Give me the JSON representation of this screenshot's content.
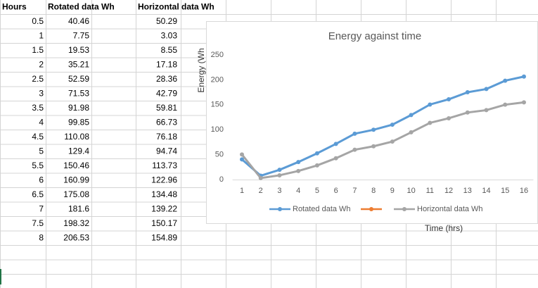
{
  "table": {
    "headers": [
      "Hours",
      "Rotated data Wh",
      "Horizontal data Wh"
    ],
    "rows": [
      [
        0.5,
        40.46,
        50.29
      ],
      [
        1,
        7.75,
        3.03
      ],
      [
        1.5,
        19.53,
        8.55
      ],
      [
        2,
        35.21,
        17.18
      ],
      [
        2.5,
        52.59,
        28.36
      ],
      [
        3,
        71.53,
        42.79
      ],
      [
        3.5,
        91.98,
        59.81
      ],
      [
        4,
        99.85,
        66.73
      ],
      [
        4.5,
        110.08,
        76.18
      ],
      [
        5,
        129.4,
        94.74
      ],
      [
        5.5,
        150.46,
        113.73
      ],
      [
        6,
        160.99,
        122.96
      ],
      [
        6.5,
        175.08,
        134.48
      ],
      [
        7,
        181.6,
        139.22
      ],
      [
        7.5,
        198.32,
        150.17
      ],
      [
        8,
        206.53,
        154.89
      ]
    ]
  },
  "chart_data": {
    "type": "line",
    "title": "Energy against time",
    "y_label": "Energy (Wh",
    "x_label": "Time (hrs)",
    "categories": [
      1,
      2,
      3,
      4,
      5,
      6,
      7,
      8,
      9,
      10,
      11,
      12,
      13,
      14,
      15,
      16
    ],
    "series": [
      {
        "name": "Rotated data Wh",
        "color": "#5b9bd5",
        "values": [
          40.46,
          7.75,
          19.53,
          35.21,
          52.59,
          71.53,
          91.98,
          99.85,
          110.08,
          129.4,
          150.46,
          160.99,
          175.08,
          181.6,
          198.32,
          206.53
        ]
      },
      {
        "name": "Horizontal data Wh",
        "color": "#a5a5a5",
        "values": [
          50.29,
          3.03,
          8.55,
          17.18,
          28.36,
          42.79,
          59.81,
          66.73,
          76.18,
          94.74,
          113.73,
          122.96,
          134.48,
          139.22,
          150.17,
          154.89
        ]
      }
    ],
    "ylim": [
      0,
      250
    ],
    "yticks": [
      0,
      50,
      100,
      150,
      200,
      250
    ],
    "grid": false
  }
}
